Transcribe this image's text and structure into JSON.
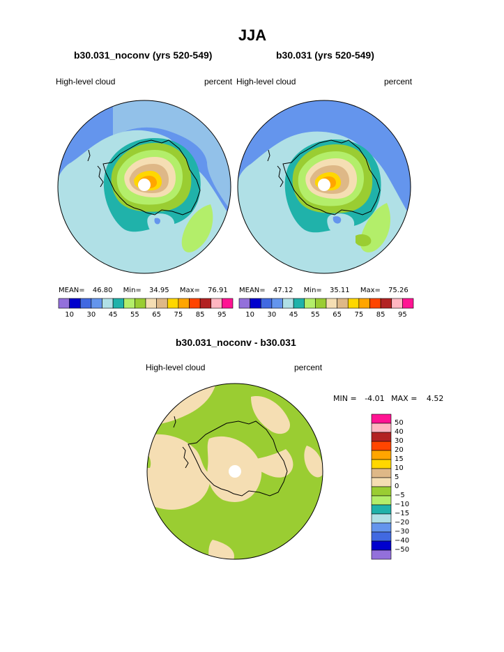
{
  "title": "JJA",
  "panels": [
    {
      "case_title": "b30.031_noconv (yrs 520-549)",
      "variable": "High-level cloud",
      "units": "percent",
      "stats": {
        "mean_label": "MEAN=",
        "mean": "46.80",
        "min_label": "Min=",
        "min": "34.95",
        "max_label": "Max=",
        "max": "76.91"
      }
    },
    {
      "case_title": "b30.031 (yrs 520-549)",
      "variable": "High-level cloud",
      "units": "percent",
      "stats": {
        "mean_label": "MEAN=",
        "mean": "47.12",
        "min_label": "Min=",
        "min": "35.11",
        "max_label": "Max=",
        "max": "75.26"
      }
    }
  ],
  "colorbar_abs": {
    "colors": [
      "#9370db",
      "#0000cd",
      "#4169e1",
      "#6495ed",
      "#b0e0e6",
      "#20b2aa",
      "#b3ee6a",
      "#9acd32",
      "#f5deb3",
      "#deb887",
      "#ffd700",
      "#ffa500",
      "#ff4500",
      "#b22222",
      "#ffb6c1",
      "#ff1493"
    ],
    "labels": [
      "10",
      "30",
      "45",
      "55",
      "65",
      "75",
      "85",
      "95"
    ]
  },
  "diff_panel": {
    "title": "b30.031_noconv - b30.031",
    "variable": "High-level cloud",
    "units": "percent",
    "stats": {
      "min_label": "MIN =",
      "min": "-4.01",
      "max_label": "MAX =",
      "max": "4.52"
    }
  },
  "colorbar_diff": {
    "colors": [
      "#ff1493",
      "#ffb6c1",
      "#b22222",
      "#ff4500",
      "#ffa500",
      "#ffd700",
      "#deb887",
      "#f5deb3",
      "#9acd32",
      "#b3ee6a",
      "#20b2aa",
      "#b0e0e6",
      "#6495ed",
      "#4169e1",
      "#0000cd",
      "#9370db"
    ],
    "labels": [
      "50",
      "40",
      "30",
      "20",
      "15",
      "10",
      "5",
      "0",
      "−5",
      "−10",
      "−15",
      "−20",
      "−30",
      "−40",
      "−50"
    ]
  },
  "map_colors": {
    "ocean_blue": "#6495ed",
    "pale_blue": "#b0e0e6",
    "teal": "#20b2aa",
    "light_green": "#b3ee6a",
    "green": "#9acd32",
    "wheat": "#f5deb3",
    "tan": "#deb887",
    "gold": "#ffd700",
    "orange": "#ffa500"
  }
}
